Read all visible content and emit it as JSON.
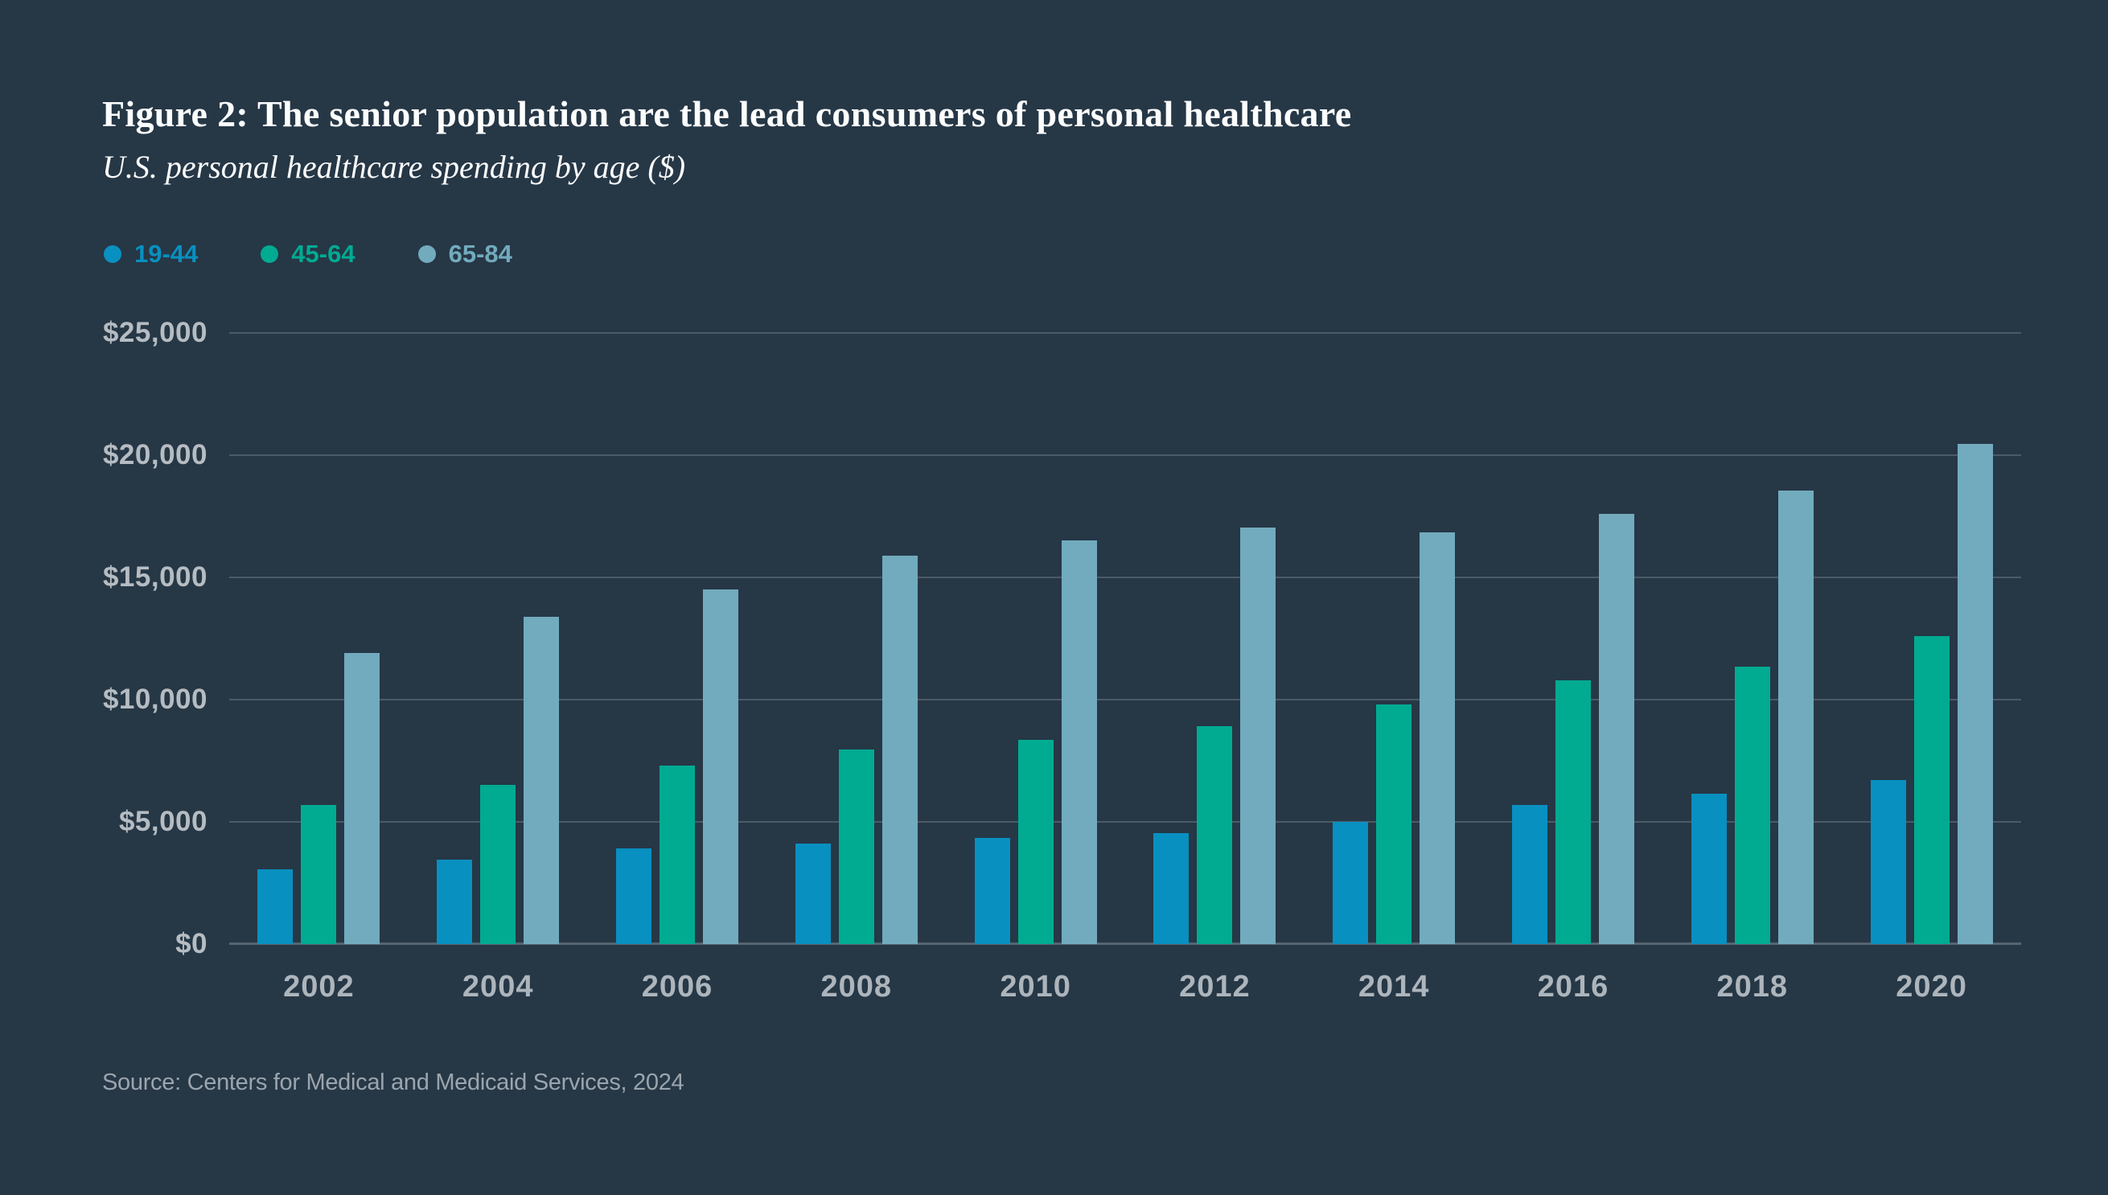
{
  "header": {
    "title": "Figure 2: The senior population are the lead consumers of personal healthcare",
    "subtitle": "U.S. personal healthcare spending by age ($)"
  },
  "footer": {
    "source": "Source: Centers for Medical and Medicaid Services, 2024"
  },
  "colors": {
    "background": "#263746",
    "title": "#FCFDFD",
    "gridline": "#4B5A67",
    "axis": "#57646F",
    "y_label": "#B5BCC2",
    "x_label": "#ADB5BC",
    "source": "#9BA5AD",
    "series_blue": "#0890C0",
    "series_teal": "#00AB92",
    "series_lightblue": "#72ABBE"
  },
  "chart_data": {
    "type": "bar",
    "title": "Figure 2: The senior population are the lead consumers of personal healthcare",
    "subtitle": "U.S. personal healthcare spending by age ($)",
    "xlabel": "",
    "ylabel": "",
    "ylim": [
      0,
      25000
    ],
    "grid": true,
    "legend_position": "top-left",
    "categories": [
      "2002",
      "2004",
      "2006",
      "2008",
      "2010",
      "2012",
      "2014",
      "2016",
      "2018",
      "2020"
    ],
    "series": [
      {
        "name": "19-44",
        "color": "#0890C0",
        "values": [
          3050,
          3450,
          3900,
          4100,
          4350,
          4550,
          5000,
          5700,
          6150,
          6700
        ]
      },
      {
        "name": "45-64",
        "color": "#00AB92",
        "values": [
          5700,
          6500,
          7300,
          7950,
          8350,
          8900,
          9800,
          10800,
          11350,
          12600
        ]
      },
      {
        "name": "65-84",
        "color": "#72ABBE",
        "values": [
          11900,
          13400,
          14500,
          15900,
          16500,
          17050,
          16850,
          17600,
          18550,
          20450
        ]
      }
    ],
    "yticks": [
      {
        "label": "$0",
        "value": 0
      },
      {
        "label": "$5,000",
        "value": 5000
      },
      {
        "label": "$10,000",
        "value": 10000
      },
      {
        "label": "$15,000",
        "value": 15000
      },
      {
        "label": "$20,000",
        "value": 20000
      },
      {
        "label": "$25,000",
        "value": 25000
      }
    ]
  }
}
